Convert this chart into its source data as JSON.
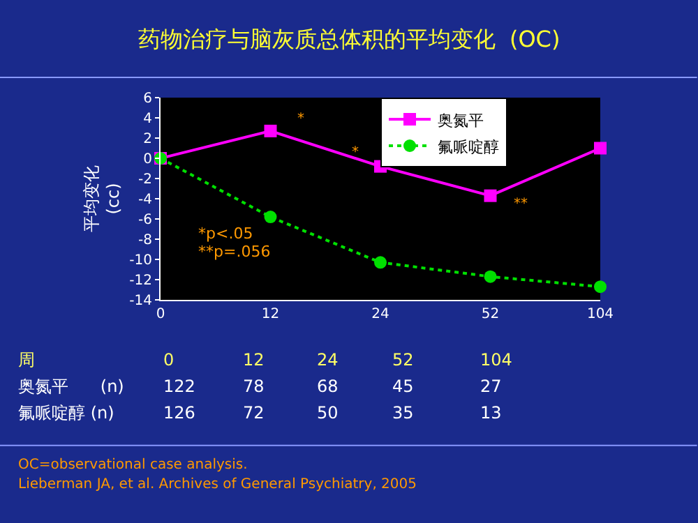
{
  "chart_data": {
    "type": "line",
    "title": "药物治疗与脑灰质总体积的平均变化  (OC)",
    "ylabel": "平均变化\n(cc)",
    "categories": [
      "0",
      "12",
      "24",
      "52",
      "104"
    ],
    "series": [
      {
        "name": "奥氮平",
        "color": "#ff00ff",
        "marker": "square",
        "line_style": "solid",
        "values": [
          0,
          2.7,
          -0.8,
          -3.7,
          1.0
        ]
      },
      {
        "name": "氟哌啶醇",
        "color": "#00e000",
        "marker": "circle",
        "line_style": "dotted",
        "values": [
          0,
          -5.8,
          -10.3,
          -11.7,
          -12.7
        ]
      }
    ],
    "ylim": [
      -14,
      6
    ],
    "yticks": [
      -14,
      -12,
      -10,
      -8,
      -6,
      -4,
      -2,
      0,
      2,
      4,
      6
    ],
    "grid": false,
    "legend": "top right",
    "annotations": [
      {
        "text": "*",
        "x": "12",
        "y": 3.8
      },
      {
        "text": "*",
        "x": "24",
        "y": 0.5
      },
      {
        "text": "**",
        "x": "52",
        "y": -4.6
      },
      "*p<.05",
      "**p=.056",
      "周",
      "奥氮平      (n)",
      "氟哌啶醇 (n)",
      "122",
      "78",
      "68",
      "45",
      "27",
      "126",
      "72",
      "50",
      "35",
      "13",
      "OC=observational case analysis.",
      "Lieberman JA, et al. Archives of General Psychiatry, 2005"
    ]
  }
}
